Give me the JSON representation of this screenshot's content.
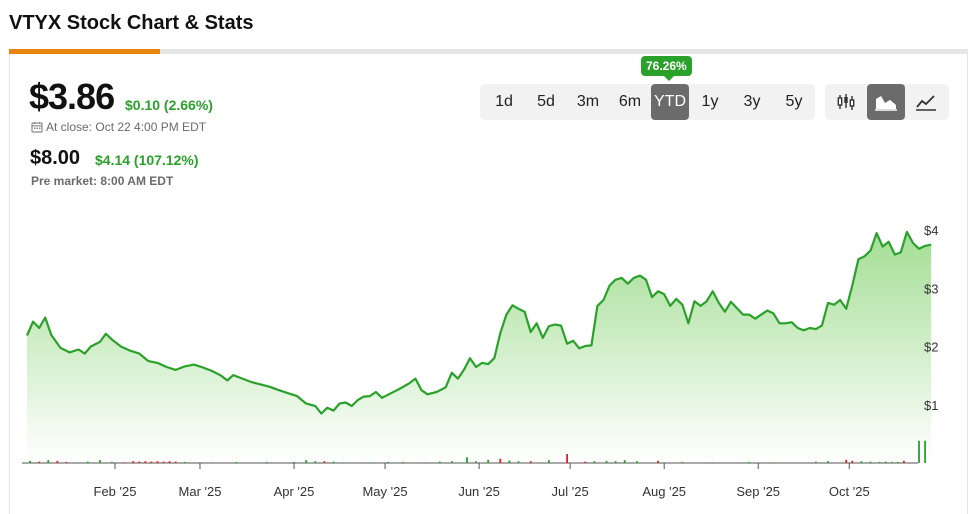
{
  "header": {
    "title": "VTYX Stock Chart & Stats"
  },
  "quote": {
    "price": "$3.86",
    "change": "$0.10 (2.66%)",
    "close_label": "At close: Oct 22 4:00 PM EDT",
    "pre_price": "$8.00",
    "pre_change": "$4.14 (107.12%)",
    "pre_label": "Pre market: 8:00 AM EDT"
  },
  "range": {
    "badge": "76.26%",
    "options": [
      "1d",
      "5d",
      "3m",
      "6m",
      "YTD",
      "1y",
      "3y",
      "5y"
    ],
    "selected": "YTD"
  },
  "chart_types": [
    {
      "name": "candlestick",
      "icon": "candlestick-icon",
      "active": false
    },
    {
      "name": "area",
      "icon": "area-chart-icon",
      "active": true
    },
    {
      "name": "line",
      "icon": "line-chart-icon",
      "active": false
    }
  ],
  "colors": {
    "up": "#2aa12a",
    "down": "#e0201c",
    "accent": "#e8830c",
    "area_top": "#9fdc8f"
  },
  "chart_data": {
    "type": "area",
    "title": "",
    "xlabel": "",
    "ylabel": "",
    "ylim": [
      0,
      4.45
    ],
    "yticks": [
      {
        "value": 1,
        "label": "$1"
      },
      {
        "value": 2,
        "label": "$2"
      },
      {
        "value": 3,
        "label": "$3"
      },
      {
        "value": 4,
        "label": "$4"
      }
    ],
    "xticks": [
      {
        "day": 31,
        "label": "Feb '25"
      },
      {
        "day": 59,
        "label": "Mar '25"
      },
      {
        "day": 90,
        "label": "Apr '25"
      },
      {
        "day": 120,
        "label": "May '25"
      },
      {
        "day": 151,
        "label": "Jun '25"
      },
      {
        "day": 181,
        "label": "Jul '25"
      },
      {
        "day": 212,
        "label": "Aug '25"
      },
      {
        "day": 243,
        "label": "Sep '25"
      },
      {
        "day": 273,
        "label": "Oct '25"
      }
    ],
    "x_domain": [
      1,
      295
    ],
    "series": [
      {
        "points": [
          [
            2,
            2.19
          ],
          [
            4,
            2.43
          ],
          [
            6,
            2.32
          ],
          [
            8,
            2.5
          ],
          [
            10,
            2.2
          ],
          [
            13,
            1.98
          ],
          [
            16,
            1.9
          ],
          [
            19,
            1.95
          ],
          [
            21,
            1.88
          ],
          [
            23,
            2.0
          ],
          [
            26,
            2.08
          ],
          [
            28,
            2.22
          ],
          [
            30,
            2.12
          ],
          [
            33,
            2.0
          ],
          [
            36,
            1.93
          ],
          [
            39,
            1.88
          ],
          [
            42,
            1.75
          ],
          [
            45,
            1.72
          ],
          [
            48,
            1.65
          ],
          [
            51,
            1.6
          ],
          [
            54,
            1.66
          ],
          [
            57,
            1.69
          ],
          [
            60,
            1.64
          ],
          [
            63,
            1.58
          ],
          [
            66,
            1.5
          ],
          [
            68,
            1.42
          ],
          [
            70,
            1.51
          ],
          [
            73,
            1.45
          ],
          [
            76,
            1.39
          ],
          [
            79,
            1.35
          ],
          [
            82,
            1.31
          ],
          [
            85,
            1.25
          ],
          [
            88,
            1.2
          ],
          [
            91,
            1.15
          ],
          [
            94,
            1.02
          ],
          [
            97,
            0.98
          ],
          [
            99,
            0.85
          ],
          [
            101,
            0.95
          ],
          [
            103,
            0.9
          ],
          [
            105,
            1.02
          ],
          [
            107,
            1.04
          ],
          [
            109,
            0.98
          ],
          [
            111,
            1.08
          ],
          [
            113,
            1.14
          ],
          [
            115,
            1.15
          ],
          [
            117,
            1.22
          ],
          [
            119,
            1.12
          ],
          [
            122,
            1.2
          ],
          [
            125,
            1.28
          ],
          [
            128,
            1.37
          ],
          [
            130,
            1.45
          ],
          [
            132,
            1.25
          ],
          [
            134,
            1.18
          ],
          [
            137,
            1.22
          ],
          [
            140,
            1.3
          ],
          [
            142,
            1.55
          ],
          [
            144,
            1.45
          ],
          [
            146,
            1.6
          ],
          [
            148,
            1.8
          ],
          [
            150,
            1.65
          ],
          [
            152,
            1.72
          ],
          [
            154,
            1.7
          ],
          [
            156,
            1.8
          ],
          [
            158,
            2.23
          ],
          [
            160,
            2.55
          ],
          [
            162,
            2.71
          ],
          [
            164,
            2.65
          ],
          [
            166,
            2.6
          ],
          [
            168,
            2.25
          ],
          [
            170,
            2.4
          ],
          [
            172,
            2.15
          ],
          [
            174,
            2.35
          ],
          [
            176,
            2.38
          ],
          [
            178,
            2.36
          ],
          [
            180,
            2.05
          ],
          [
            182,
            2.1
          ],
          [
            184,
            1.97
          ],
          [
            186,
            2.01
          ],
          [
            188,
            2.02
          ],
          [
            190,
            2.7
          ],
          [
            192,
            2.8
          ],
          [
            194,
            3.05
          ],
          [
            196,
            3.15
          ],
          [
            198,
            3.18
          ],
          [
            200,
            3.08
          ],
          [
            202,
            3.18
          ],
          [
            204,
            3.22
          ],
          [
            206,
            3.15
          ],
          [
            208,
            2.85
          ],
          [
            210,
            2.95
          ],
          [
            212,
            2.9
          ],
          [
            214,
            2.7
          ],
          [
            216,
            2.82
          ],
          [
            218,
            2.72
          ],
          [
            220,
            2.4
          ],
          [
            222,
            2.78
          ],
          [
            224,
            2.7
          ],
          [
            226,
            2.78
          ],
          [
            228,
            2.95
          ],
          [
            230,
            2.75
          ],
          [
            232,
            2.6
          ],
          [
            234,
            2.77
          ],
          [
            236,
            2.66
          ],
          [
            238,
            2.55
          ],
          [
            240,
            2.55
          ],
          [
            242,
            2.48
          ],
          [
            244,
            2.55
          ],
          [
            246,
            2.62
          ],
          [
            248,
            2.57
          ],
          [
            250,
            2.4
          ],
          [
            252,
            2.4
          ],
          [
            254,
            2.42
          ],
          [
            256,
            2.32
          ],
          [
            258,
            2.28
          ],
          [
            260,
            2.32
          ],
          [
            262,
            2.3
          ],
          [
            264,
            2.36
          ],
          [
            266,
            2.75
          ],
          [
            268,
            2.72
          ],
          [
            270,
            2.8
          ],
          [
            272,
            2.65
          ],
          [
            274,
            3.05
          ],
          [
            276,
            3.5
          ],
          [
            278,
            3.55
          ],
          [
            280,
            3.65
          ],
          [
            282,
            3.95
          ],
          [
            284,
            3.72
          ],
          [
            286,
            3.8
          ],
          [
            288,
            3.58
          ],
          [
            290,
            3.62
          ],
          [
            292,
            3.97
          ],
          [
            294,
            3.78
          ],
          [
            296,
            3.68
          ],
          [
            298,
            3.73
          ],
          [
            300,
            3.75
          ]
        ]
      }
    ],
    "volume": {
      "bars": [
        [
          3,
          0.06,
          "up"
        ],
        [
          6,
          0.04,
          "down"
        ],
        [
          9,
          0.08,
          "up"
        ],
        [
          12,
          0.06,
          "down"
        ],
        [
          15,
          0.03,
          "down"
        ],
        [
          18,
          0.02,
          "up"
        ],
        [
          22,
          0.04,
          "up"
        ],
        [
          26,
          0.08,
          "up"
        ],
        [
          30,
          0.03,
          "up"
        ],
        [
          34,
          0.02,
          "down"
        ],
        [
          37,
          0.05,
          "down"
        ],
        [
          39,
          0.04,
          "down"
        ],
        [
          41,
          0.05,
          "down"
        ],
        [
          43,
          0.04,
          "down"
        ],
        [
          45,
          0.05,
          "down"
        ],
        [
          47,
          0.04,
          "down"
        ],
        [
          49,
          0.05,
          "down"
        ],
        [
          51,
          0.04,
          "down"
        ],
        [
          54,
          0.03,
          "up"
        ],
        [
          63,
          0.02,
          "up"
        ],
        [
          71,
          0.03,
          "up"
        ],
        [
          81,
          0.03,
          "up"
        ],
        [
          90,
          0.03,
          "up"
        ],
        [
          94,
          0.08,
          "up"
        ],
        [
          97,
          0.05,
          "up"
        ],
        [
          100,
          0.05,
          "down"
        ],
        [
          103,
          0.04,
          "up"
        ],
        [
          106,
          0.02,
          "up"
        ],
        [
          115,
          0.02,
          "up"
        ],
        [
          121,
          0.03,
          "up"
        ],
        [
          126,
          0.03,
          "up"
        ],
        [
          133,
          0.02,
          "up"
        ],
        [
          138,
          0.04,
          "up"
        ],
        [
          142,
          0.05,
          "up"
        ],
        [
          147,
          0.16,
          "up"
        ],
        [
          150,
          0.05,
          "up"
        ],
        [
          154,
          0.09,
          "up"
        ],
        [
          158,
          0.12,
          "down"
        ],
        [
          161,
          0.07,
          "up"
        ],
        [
          164,
          0.05,
          "up"
        ],
        [
          168,
          0.05,
          "down"
        ],
        [
          174,
          0.08,
          "up"
        ],
        [
          180,
          0.25,
          "down"
        ],
        [
          186,
          0.04,
          "down"
        ],
        [
          189,
          0.05,
          "up"
        ],
        [
          193,
          0.06,
          "up"
        ],
        [
          196,
          0.05,
          "up"
        ],
        [
          199,
          0.08,
          "up"
        ],
        [
          203,
          0.05,
          "up"
        ],
        [
          210,
          0.06,
          "down"
        ],
        [
          218,
          0.03,
          "up"
        ],
        [
          228,
          0.02,
          "up"
        ],
        [
          240,
          0.03,
          "up"
        ],
        [
          248,
          0.02,
          "up"
        ],
        [
          262,
          0.04,
          "up"
        ],
        [
          266,
          0.05,
          "up"
        ],
        [
          272,
          0.09,
          "down"
        ],
        [
          274,
          0.06,
          "down"
        ],
        [
          277,
          0.05,
          "up"
        ],
        [
          280,
          0.04,
          "up"
        ],
        [
          283,
          0.03,
          "up"
        ],
        [
          285,
          0.04,
          "up"
        ],
        [
          287,
          0.03,
          "up"
        ],
        [
          289,
          0.03,
          "up"
        ],
        [
          291,
          0.06,
          "down"
        ],
        [
          296,
          0.62,
          "up"
        ],
        [
          298,
          0.62,
          "up"
        ]
      ]
    }
  }
}
